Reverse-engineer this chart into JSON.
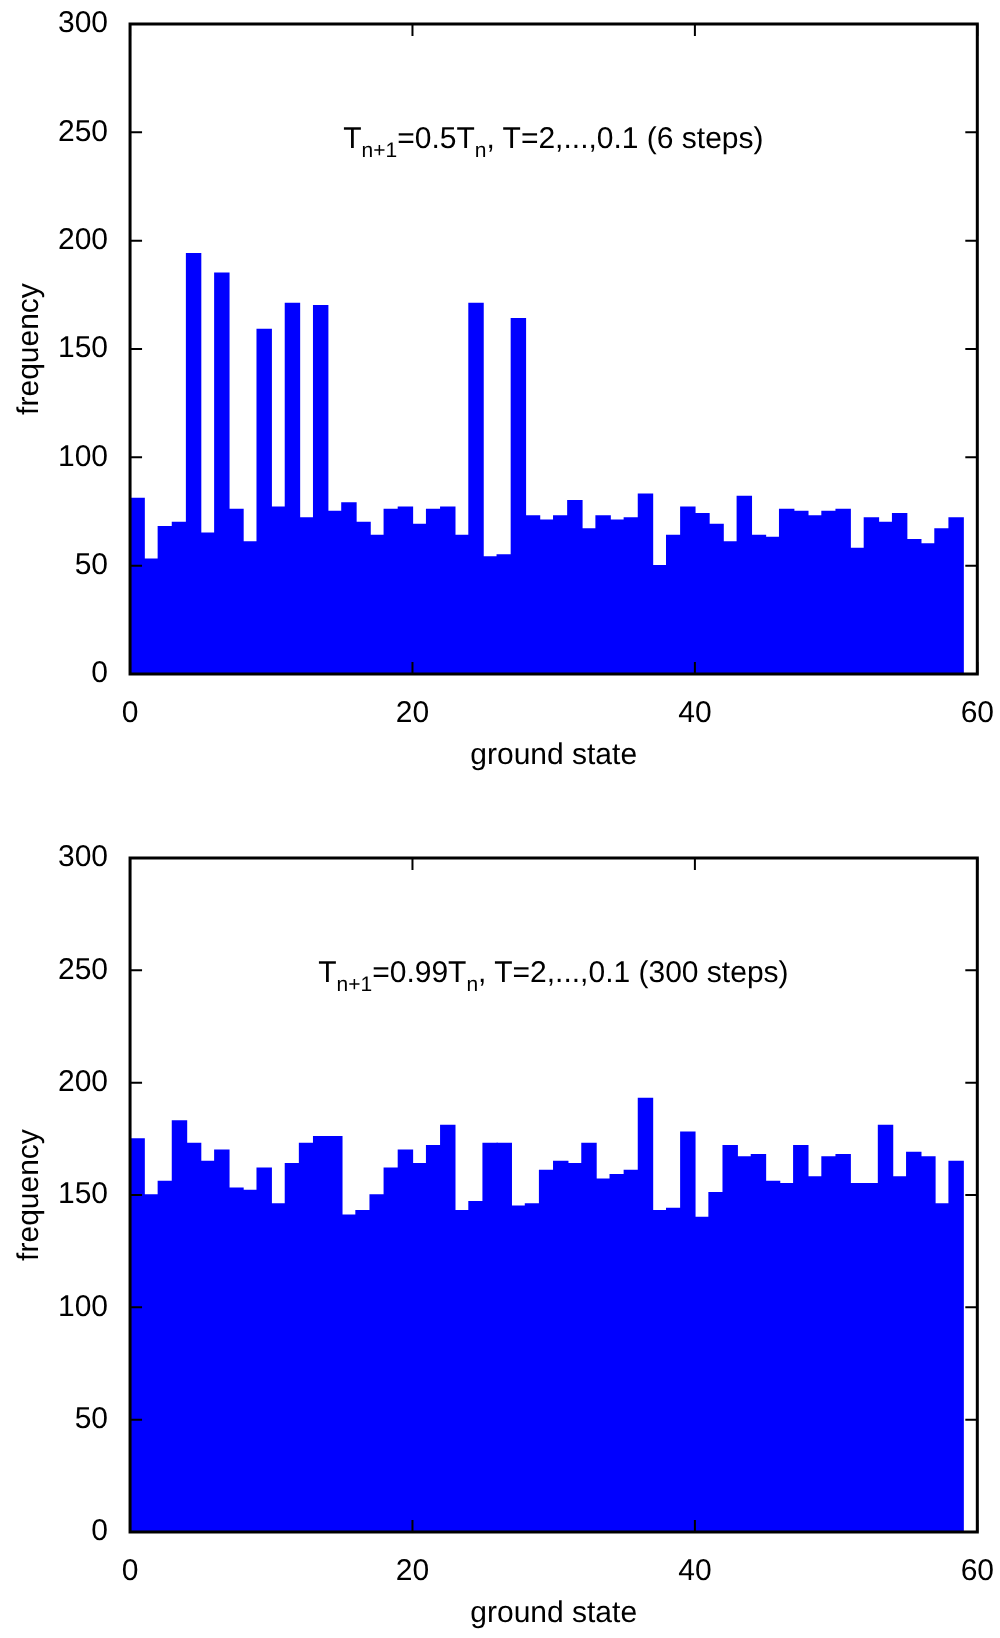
{
  "chart_data": [
    {
      "type": "histogram",
      "title": "T$_{n+1}$=0.5T$_{n}$, T=2,...,0.1 (6 steps)",
      "xlabel": "ground state",
      "ylabel": "frequency",
      "color": "#0000ff",
      "bins": [
        0,
        1,
        2,
        3,
        4,
        5,
        6,
        7,
        8,
        9,
        10,
        11,
        12,
        13,
        14,
        15,
        16,
        17,
        18,
        19,
        20,
        21,
        22,
        23,
        24,
        25,
        26,
        27,
        28,
        29,
        30,
        31,
        32,
        33,
        34,
        35,
        36,
        37,
        38,
        39,
        40,
        41,
        42,
        43,
        44,
        45,
        46,
        47,
        48,
        49,
        50,
        51,
        52,
        53,
        54,
        55,
        56,
        57,
        58,
        59
      ],
      "values": [
        81,
        53,
        68,
        70,
        194,
        65,
        185,
        76,
        61,
        159,
        77,
        171,
        72,
        170,
        75,
        79,
        70,
        64,
        76,
        77,
        69,
        76,
        77,
        64,
        171,
        54,
        55,
        164,
        73,
        71,
        73,
        80,
        67,
        73,
        71,
        72,
        83,
        50,
        64,
        77,
        74,
        69,
        61,
        82,
        64,
        63,
        76,
        75,
        73,
        75,
        76,
        58,
        72,
        70,
        74,
        62,
        60,
        67,
        72
      ],
      "xlim": [
        0,
        60
      ],
      "xticks": [
        0,
        20,
        40,
        60
      ],
      "ylim": [
        0,
        300
      ],
      "yticks": [
        0,
        50,
        100,
        150,
        200,
        250,
        300
      ]
    },
    {
      "type": "histogram",
      "title": "T$_{n+1}$=0.99T$_{n}$, T=2,...,0.1 (300 steps)",
      "xlabel": "ground state",
      "ylabel": "frequency",
      "color": "#0000ff",
      "bins": [
        0,
        1,
        2,
        3,
        4,
        5,
        6,
        7,
        8,
        9,
        10,
        11,
        12,
        13,
        14,
        15,
        16,
        17,
        18,
        19,
        20,
        21,
        22,
        23,
        24,
        25,
        26,
        27,
        28,
        29,
        30,
        31,
        32,
        33,
        34,
        35,
        36,
        37,
        38,
        39,
        40,
        41,
        42,
        43,
        44,
        45,
        46,
        47,
        48,
        49,
        50,
        51,
        52,
        53,
        54,
        55,
        56,
        57,
        58,
        59
      ],
      "values": [
        175,
        150,
        156,
        183,
        173,
        165,
        170,
        153,
        152,
        162,
        146,
        164,
        173,
        176,
        176,
        141,
        143,
        150,
        162,
        170,
        164,
        172,
        181,
        143,
        147,
        173,
        173,
        145,
        146,
        161,
        165,
        164,
        173,
        157,
        159,
        161,
        193,
        143,
        144,
        178,
        140,
        151,
        172,
        167,
        168,
        156,
        155,
        172,
        158,
        167,
        168,
        155,
        155,
        181,
        158,
        169,
        167,
        146,
        165
      ],
      "xlim": [
        0,
        60
      ],
      "xticks": [
        0,
        20,
        40,
        60
      ],
      "ylim": [
        0,
        300
      ],
      "yticks": [
        0,
        50,
        100,
        150,
        200,
        250,
        300
      ]
    }
  ]
}
